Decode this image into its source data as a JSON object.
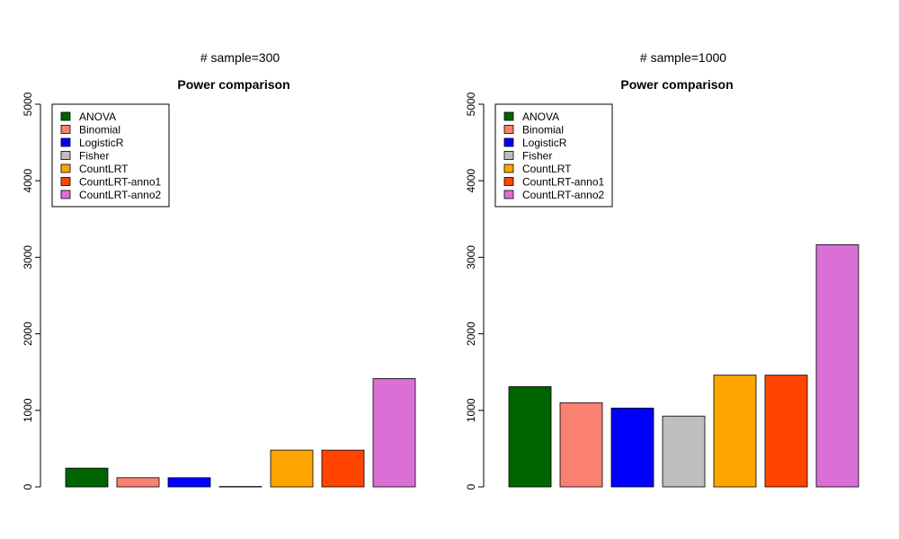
{
  "chart_data": [
    {
      "type": "bar",
      "supertitle": "# sample=300",
      "title": "Power comparison",
      "xlabel": "",
      "ylabel": "",
      "ylim": [
        0,
        5000
      ],
      "yticks": [
        "0",
        "1000",
        "2000",
        "3000",
        "4000",
        "5000"
      ],
      "legend_position": "top-left",
      "categories": [
        "ANOVA",
        "Binomial",
        "LogisticR",
        "Fisher",
        "CountLRT",
        "CountLRT-anno1",
        "CountLRT-anno2"
      ],
      "values": [
        245,
        120,
        120,
        5,
        480,
        480,
        1415
      ],
      "colors": [
        "#006400",
        "#fa8072",
        "#0000ff",
        "#bebebe",
        "#ffa500",
        "#ff4500",
        "#da70d6"
      ]
    },
    {
      "type": "bar",
      "supertitle": "# sample=1000",
      "title": "Power comparison",
      "xlabel": "",
      "ylabel": "",
      "ylim": [
        0,
        5000
      ],
      "yticks": [
        "0",
        "1000",
        "2000",
        "3000",
        "4000",
        "5000"
      ],
      "legend_position": "top-left",
      "categories": [
        "ANOVA",
        "Binomial",
        "LogisticR",
        "Fisher",
        "CountLRT",
        "CountLRT-anno1",
        "CountLRT-anno2"
      ],
      "values": [
        1310,
        1100,
        1030,
        925,
        1460,
        1460,
        3165
      ],
      "colors": [
        "#006400",
        "#fa8072",
        "#0000ff",
        "#bebebe",
        "#ffa500",
        "#ff4500",
        "#da70d6"
      ]
    }
  ]
}
